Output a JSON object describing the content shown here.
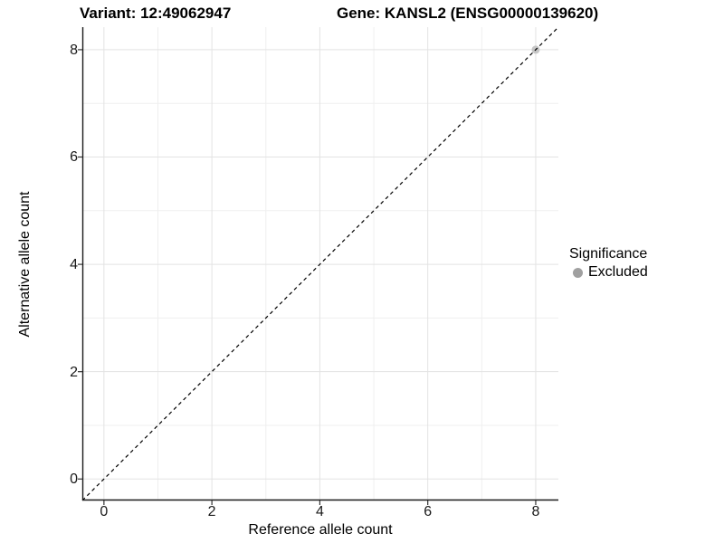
{
  "titles": {
    "variant": "Variant: 12:49062947",
    "gene": "Gene: KANSL2 (ENSG00000139620)"
  },
  "chart_data": {
    "type": "scatter",
    "xlabel": "Reference allele count",
    "ylabel": "Alternative allele count",
    "xlim": [
      -0.4,
      8.42
    ],
    "ylim": [
      -0.4,
      8.42
    ],
    "x_ticks": [
      0,
      2,
      4,
      6,
      8
    ],
    "y_ticks": [
      0,
      2,
      4,
      6,
      8
    ],
    "grid": {
      "on": true,
      "major": [
        0,
        2,
        4,
        6,
        8
      ],
      "minor": [
        1,
        3,
        5,
        7
      ]
    },
    "identity_line": {
      "slope": 1,
      "intercept": 0,
      "style": "dashed",
      "color": "#000000"
    },
    "series": [
      {
        "name": "Excluded",
        "color": "#a0a0a0",
        "point_fill": "#c6c6c6",
        "points": [
          {
            "x": 8,
            "y": 8
          }
        ]
      }
    ],
    "legend": {
      "title": "Significance",
      "position": "right",
      "items": [
        {
          "label": "Excluded",
          "color": "#a0a0a0"
        }
      ]
    },
    "colors": {
      "grid_major": "#e3e3e3",
      "grid_minor": "#efefef",
      "axis_line": "#1a1a1a",
      "tick_mark": "#333333",
      "text": "#000000"
    }
  }
}
